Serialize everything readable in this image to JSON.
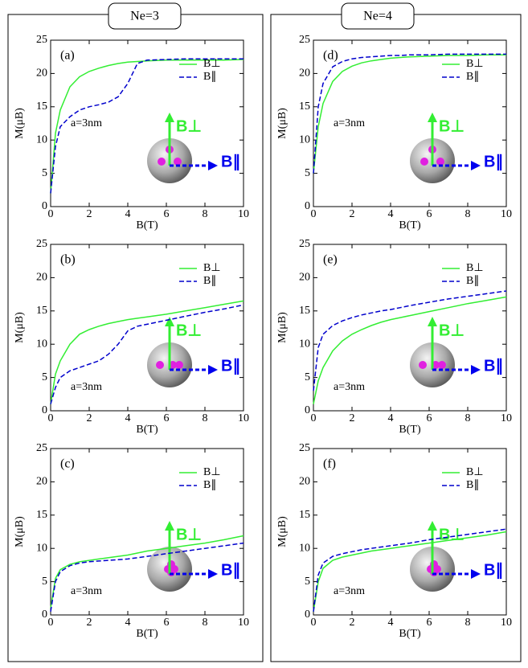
{
  "headers": [
    "Ne=3",
    "Ne=4"
  ],
  "chart_data": [
    {
      "type": "line",
      "panel_label": "(a)",
      "annotation": "a=3nm",
      "x_label": "B(T)",
      "y_label": "M(μB)",
      "x": [
        0,
        0.25,
        0.5,
        1,
        1.5,
        2,
        2.5,
        3,
        3.5,
        4,
        4.5,
        5,
        6,
        7,
        8,
        9,
        10
      ],
      "series": [
        {
          "name": "B⊥",
          "color": "#33ee33",
          "dash": false,
          "values": [
            2,
            11,
            14.5,
            18,
            19.5,
            20.3,
            20.8,
            21.2,
            21.5,
            21.7,
            21.8,
            21.9,
            22,
            22,
            22,
            22,
            22.1
          ]
        },
        {
          "name": "B∥",
          "color": "#0000cc",
          "dash": true,
          "values": [
            2,
            9,
            12,
            13.5,
            14.5,
            15,
            15.3,
            15.7,
            16.5,
            18.5,
            21.5,
            22,
            22.1,
            22.2,
            22.2,
            22.2,
            22.2
          ]
        }
      ],
      "inset_labels": [
        "B⊥",
        "B∥"
      ],
      "xlim": [
        0,
        10
      ],
      "ylim": [
        0,
        25
      ],
      "xticks": [
        0,
        2,
        4,
        6,
        8,
        10
      ],
      "yticks": [
        0,
        5,
        10,
        15,
        20,
        25
      ]
    },
    {
      "type": "line",
      "panel_label": "(b)",
      "annotation": "a=3nm",
      "x_label": "B(T)",
      "y_label": "M(μB)",
      "x": [
        0,
        0.25,
        0.5,
        1,
        1.5,
        2,
        2.5,
        3,
        3.5,
        4,
        4.5,
        5,
        6,
        7,
        8,
        9,
        10
      ],
      "series": [
        {
          "name": "B⊥",
          "color": "#33ee33",
          "dash": false,
          "values": [
            1,
            5.5,
            7.5,
            10,
            11.5,
            12.2,
            12.7,
            13.1,
            13.4,
            13.7,
            13.9,
            14.1,
            14.5,
            15,
            15.5,
            16,
            16.5
          ]
        },
        {
          "name": "B∥",
          "color": "#0000cc",
          "dash": true,
          "values": [
            1,
            3.5,
            5,
            6,
            6.5,
            7,
            7.5,
            8.5,
            10,
            12,
            12.7,
            13,
            13.6,
            14.2,
            14.8,
            15.3,
            15.9
          ]
        }
      ],
      "inset_labels": [
        "B⊥",
        "B∥"
      ],
      "xlim": [
        0,
        10
      ],
      "ylim": [
        0,
        25
      ],
      "xticks": [
        0,
        2,
        4,
        6,
        8,
        10
      ],
      "yticks": [
        0,
        5,
        10,
        15,
        20,
        25
      ]
    },
    {
      "type": "line",
      "panel_label": "(c)",
      "annotation": "a=3nm",
      "x_label": "B(T)",
      "y_label": "M(μB)",
      "x": [
        0,
        0.25,
        0.5,
        1,
        1.5,
        2,
        2.5,
        3,
        3.5,
        4,
        4.5,
        5,
        6,
        7,
        8,
        9,
        10
      ],
      "series": [
        {
          "name": "B⊥",
          "color": "#33ee33",
          "dash": false,
          "values": [
            1,
            5.5,
            6.8,
            7.6,
            8,
            8.2,
            8.4,
            8.6,
            8.8,
            9,
            9.3,
            9.6,
            10,
            10.4,
            10.8,
            11.3,
            11.9
          ]
        },
        {
          "name": "B∥",
          "color": "#0000cc",
          "dash": true,
          "values": [
            0.5,
            5,
            6.5,
            7.4,
            7.8,
            8,
            8.1,
            8.2,
            8.3,
            8.4,
            8.6,
            8.8,
            9.2,
            9.6,
            10,
            10.4,
            10.8
          ]
        }
      ],
      "inset_labels": [
        "B⊥",
        "B∥"
      ],
      "xlim": [
        0,
        10
      ],
      "ylim": [
        0,
        25
      ],
      "xticks": [
        0,
        2,
        4,
        6,
        8,
        10
      ],
      "yticks": [
        0,
        5,
        10,
        15,
        20,
        25
      ]
    },
    {
      "type": "line",
      "panel_label": "(d)",
      "annotation": "a=3nm",
      "x_label": "B(T)",
      "y_label": "M(μB)",
      "x": [
        0,
        0.25,
        0.5,
        1,
        1.5,
        2,
        2.5,
        3,
        3.5,
        4,
        4.5,
        5,
        6,
        7,
        8,
        9,
        10
      ],
      "series": [
        {
          "name": "B⊥",
          "color": "#33ee33",
          "dash": false,
          "values": [
            5,
            12,
            15.5,
            18.8,
            20.3,
            21.1,
            21.6,
            21.9,
            22.1,
            22.3,
            22.4,
            22.5,
            22.6,
            22.7,
            22.7,
            22.8,
            22.8
          ]
        },
        {
          "name": "B∥",
          "color": "#0000cc",
          "dash": true,
          "values": [
            5,
            15,
            18.5,
            21,
            21.8,
            22.2,
            22.4,
            22.5,
            22.6,
            22.7,
            22.7,
            22.8,
            22.8,
            22.9,
            22.9,
            22.9,
            22.9
          ]
        }
      ],
      "inset_labels": [
        "B⊥",
        "B∥"
      ],
      "xlim": [
        0,
        10
      ],
      "ylim": [
        0,
        25
      ],
      "xticks": [
        0,
        2,
        4,
        6,
        8,
        10
      ],
      "yticks": [
        0,
        5,
        10,
        15,
        20,
        25
      ]
    },
    {
      "type": "line",
      "panel_label": "(e)",
      "annotation": "a=3nm",
      "x_label": "B(T)",
      "y_label": "M(μB)",
      "x": [
        0,
        0.25,
        0.5,
        1,
        1.5,
        2,
        2.5,
        3,
        3.5,
        4,
        4.5,
        5,
        6,
        7,
        8,
        9,
        10
      ],
      "series": [
        {
          "name": "B⊥",
          "color": "#33ee33",
          "dash": false,
          "values": [
            1,
            4.5,
            6.5,
            9,
            10.5,
            11.5,
            12.2,
            12.8,
            13.3,
            13.7,
            14,
            14.3,
            14.9,
            15.5,
            16.1,
            16.6,
            17.1
          ]
        },
        {
          "name": "B∥",
          "color": "#0000cc",
          "dash": true,
          "values": [
            3,
            9.5,
            11.5,
            12.8,
            13.5,
            14,
            14.4,
            14.7,
            15,
            15.2,
            15.5,
            15.8,
            16.3,
            16.8,
            17.2,
            17.6,
            18
          ]
        }
      ],
      "inset_labels": [
        "B⊥",
        "B∥"
      ],
      "xlim": [
        0,
        10
      ],
      "ylim": [
        0,
        25
      ],
      "xticks": [
        0,
        2,
        4,
        6,
        8,
        10
      ],
      "yticks": [
        0,
        5,
        10,
        15,
        20,
        25
      ]
    },
    {
      "type": "line",
      "panel_label": "(f)",
      "annotation": "a=3nm",
      "x_label": "B(T)",
      "y_label": "M(μB)",
      "x": [
        0,
        0.25,
        0.5,
        1,
        1.5,
        2,
        2.5,
        3,
        3.5,
        4,
        4.5,
        5,
        6,
        7,
        8,
        9,
        10
      ],
      "series": [
        {
          "name": "B⊥",
          "color": "#33ee33",
          "dash": false,
          "values": [
            0.5,
            5,
            7,
            8.2,
            8.7,
            9,
            9.3,
            9.6,
            9.8,
            10,
            10.2,
            10.4,
            10.8,
            11.2,
            11.6,
            12,
            12.5
          ]
        },
        {
          "name": "B∥",
          "color": "#0000cc",
          "dash": true,
          "values": [
            0.5,
            6,
            7.8,
            8.8,
            9.2,
            9.5,
            9.8,
            10,
            10.2,
            10.4,
            10.6,
            10.8,
            11.3,
            11.7,
            12.1,
            12.5,
            12.9
          ]
        }
      ],
      "inset_labels": [
        "B⊥",
        "B∥"
      ],
      "xlim": [
        0,
        10
      ],
      "ylim": [
        0,
        25
      ],
      "xticks": [
        0,
        2,
        4,
        6,
        8,
        10
      ],
      "yticks": [
        0,
        5,
        10,
        15,
        20,
        25
      ]
    }
  ]
}
